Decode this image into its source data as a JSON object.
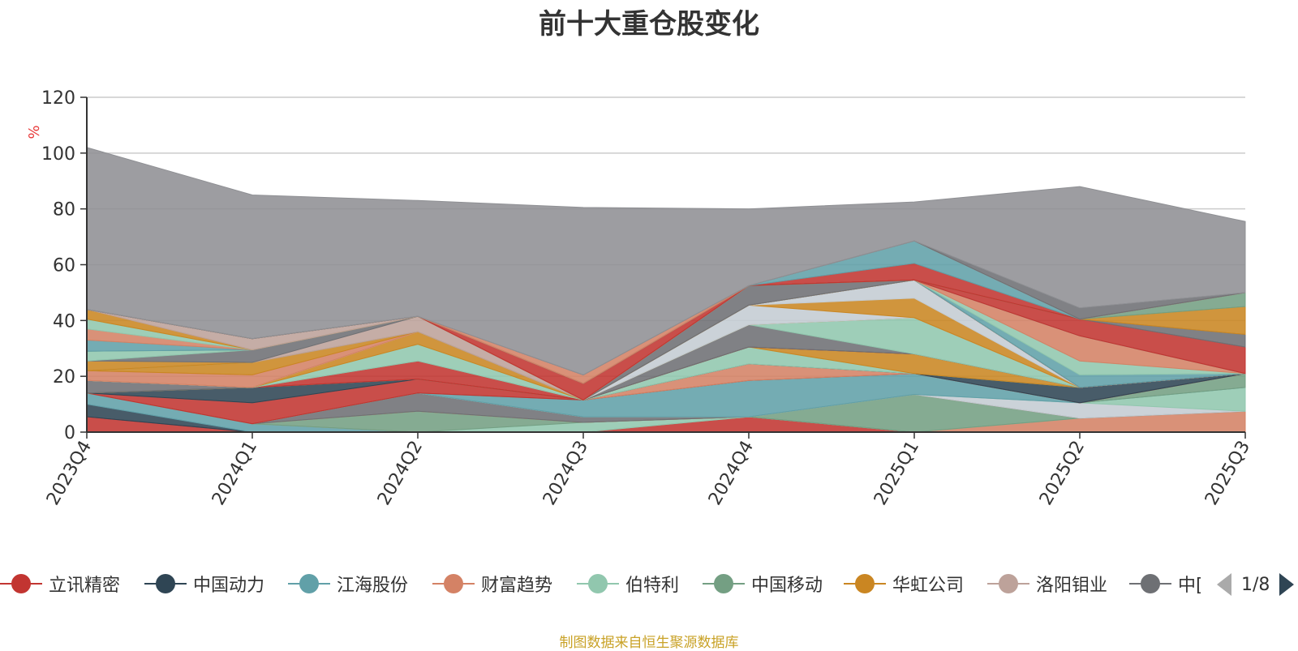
{
  "chart_data": {
    "type": "area",
    "title": "前十大重仓股变化",
    "ylabel": "%",
    "ylim": [
      0,
      120
    ],
    "yticks": [
      0,
      20,
      40,
      60,
      80,
      100,
      120
    ],
    "categories": [
      "2023Q4",
      "2024Q1",
      "2024Q2",
      "2024Q3",
      "2024Q4",
      "2025Q1",
      "2025Q2",
      "2025Q3"
    ],
    "grid": true,
    "stacked": true,
    "series": [
      {
        "name": "立讯精密",
        "color": "#c23531",
        "values": [
          5.5,
          0,
          0,
          0,
          5.5,
          0,
          0,
          0
        ]
      },
      {
        "name": "",
        "color": "#2f4554",
        "values": [
          4.5,
          0,
          0,
          0,
          0,
          0,
          0,
          0
        ]
      },
      {
        "name": "",
        "color": "#61a0a8",
        "values": [
          4,
          3,
          0,
          0,
          0,
          0,
          0,
          0
        ]
      },
      {
        "name": "",
        "color": "#d48265",
        "values": [
          0,
          0,
          0,
          0,
          0,
          0,
          5,
          7.5
        ]
      },
      {
        "name": "",
        "color": "#91c7ae",
        "values": [
          0,
          0,
          0,
          3.5,
          0,
          0,
          0,
          0
        ]
      },
      {
        "name": "",
        "color": "#749f83",
        "values": [
          0,
          0,
          7.5,
          0,
          0,
          13.5,
          0,
          0
        ]
      },
      {
        "name": "",
        "color": "#ca8622",
        "values": [
          0,
          0,
          0,
          0,
          0,
          0,
          0,
          0
        ]
      },
      {
        "name": "",
        "color": "#bda29a",
        "values": [
          0,
          0,
          0,
          0,
          0,
          0,
          0,
          0
        ]
      },
      {
        "name": "",
        "color": "#6e7074",
        "values": [
          0,
          0,
          6.5,
          2,
          0,
          0,
          0,
          0
        ]
      },
      {
        "name": "",
        "color": "#c4ccd3",
        "values": [
          0,
          0,
          0,
          0,
          0,
          0,
          5.5,
          0
        ]
      },
      {
        "name": "",
        "color": "#91c7ae",
        "values": [
          0,
          0,
          0,
          0,
          0,
          0,
          0,
          8.5
        ]
      },
      {
        "name": "",
        "color": "#61a0a8",
        "values": [
          0,
          0,
          0,
          6,
          13,
          7.5,
          0,
          0
        ]
      },
      {
        "name": "",
        "color": "#749f83",
        "values": [
          0,
          0,
          0,
          0,
          0,
          0,
          0,
          5
        ]
      },
      {
        "name": "",
        "color": "#c23531",
        "values": [
          0,
          7.5,
          5,
          0,
          0,
          0,
          0,
          0
        ]
      },
      {
        "name": "",
        "color": "#d48265",
        "values": [
          0,
          0,
          0,
          0,
          6,
          0,
          0,
          0
        ]
      },
      {
        "name": "",
        "color": "#2f4554",
        "values": [
          0,
          5.5,
          0,
          0,
          0,
          0,
          5.5,
          0
        ]
      },
      {
        "name": "",
        "color": "#91c7ae",
        "values": [
          0,
          0,
          0,
          0,
          6,
          0,
          0,
          0
        ]
      },
      {
        "name": "",
        "color": "#ca8622",
        "values": [
          0,
          0,
          0,
          0,
          0,
          7,
          0,
          0
        ]
      },
      {
        "name": "",
        "color": "#6e7074",
        "values": [
          4.5,
          0,
          0,
          0,
          0,
          0,
          0,
          0
        ]
      },
      {
        "name": "",
        "color": "#c23531",
        "values": [
          0,
          0,
          6.5,
          0,
          0,
          0,
          0,
          0
        ]
      },
      {
        "name": "",
        "color": "#6e7074",
        "values": [
          0,
          0,
          0,
          0,
          8,
          0,
          0,
          0
        ]
      },
      {
        "name": "",
        "color": "#91c7ae",
        "values": [
          0,
          0,
          0,
          0,
          0,
          13,
          0,
          0
        ]
      },
      {
        "name": "",
        "color": "#91c7ae",
        "values": [
          0,
          0,
          6,
          0,
          0,
          0,
          0,
          0
        ]
      },
      {
        "name": "",
        "color": "#ca8622",
        "values": [
          0,
          0,
          4.5,
          0,
          0,
          0,
          0,
          0
        ]
      },
      {
        "name": "",
        "color": "#c4ccd3",
        "values": [
          0,
          0,
          0,
          0,
          7,
          0,
          0,
          0
        ]
      },
      {
        "name": "",
        "color": "#ca8622",
        "values": [
          0,
          0,
          0,
          0,
          0,
          7,
          0,
          0
        ]
      },
      {
        "name": "",
        "color": "#c4ccd3",
        "values": [
          0,
          0,
          0,
          0,
          0,
          6.5,
          0,
          0
        ]
      },
      {
        "name": "",
        "color": "#d48265",
        "values": [
          3.5,
          4.5,
          0,
          0,
          0,
          0,
          0,
          0
        ]
      },
      {
        "name": "",
        "color": "#ca8622",
        "values": [
          0,
          4.5,
          0,
          0,
          0,
          0,
          0,
          0
        ]
      },
      {
        "name": "",
        "color": "#91c7ae",
        "values": [
          0,
          0,
          0,
          0,
          0,
          0,
          0,
          0
        ]
      },
      {
        "name": "",
        "color": "#ca8622",
        "values": [
          3.5,
          0,
          0,
          0,
          0,
          0,
          0,
          0
        ]
      },
      {
        "name": "",
        "color": "#bda29a",
        "values": [
          0,
          0,
          5.5,
          0,
          0,
          0,
          0,
          0
        ]
      },
      {
        "name": "",
        "color": "#6e7074",
        "values": [
          0,
          4.5,
          0,
          0,
          7,
          0,
          0,
          0
        ]
      },
      {
        "name": "",
        "color": "#91c7ae",
        "values": [
          3.5,
          0,
          0,
          0,
          0,
          0,
          0,
          0
        ]
      },
      {
        "name": "",
        "color": "#749f83",
        "values": [
          0,
          0,
          0,
          0,
          0,
          0,
          0,
          0
        ]
      },
      {
        "name": "",
        "color": "#61a0a8",
        "values": [
          4,
          0,
          0,
          0,
          0,
          0,
          0,
          0
        ]
      },
      {
        "name": "",
        "color": "#d48265",
        "values": [
          4,
          0,
          0,
          0,
          0,
          0,
          0,
          0
        ]
      },
      {
        "name": "",
        "color": "#91c7ae",
        "values": [
          3.5,
          0,
          0,
          0,
          0,
          0,
          0,
          0
        ]
      },
      {
        "name": "",
        "color": "#ca8622",
        "values": [
          3.5,
          0,
          0,
          0,
          0,
          0,
          0,
          0
        ]
      },
      {
        "name": "",
        "color": "#bda29a",
        "values": [
          0,
          4,
          0,
          0,
          0,
          0,
          0,
          0
        ]
      },
      {
        "name": "",
        "color": "#c23531",
        "values": [
          0,
          0,
          0,
          6,
          0,
          0,
          0,
          0
        ]
      },
      {
        "name": "",
        "color": "#61a0a8",
        "values": [
          0,
          0,
          0,
          0,
          0,
          0,
          4.5,
          0
        ]
      },
      {
        "name": "",
        "color": "#91c7ae",
        "values": [
          0,
          0,
          0,
          0,
          0,
          0,
          5,
          0
        ]
      },
      {
        "name": "",
        "color": "#d48265",
        "values": [
          0,
          0,
          0,
          0,
          0,
          0,
          9,
          0
        ]
      },
      {
        "name": "",
        "color": "#61a0a8",
        "values": [
          0,
          0,
          0,
          0,
          0,
          0,
          0,
          0
        ]
      },
      {
        "name": "",
        "color": "#c23531",
        "values": [
          0,
          0,
          0,
          0,
          0,
          0,
          6,
          9.5
        ]
      },
      {
        "name": "",
        "color": "#6e7074",
        "values": [
          0,
          0,
          0,
          0,
          0,
          0,
          0,
          4.5
        ]
      },
      {
        "name": "",
        "color": "#ca8622",
        "values": [
          0,
          0,
          0,
          0,
          0,
          0,
          0,
          10
        ]
      },
      {
        "name": "",
        "color": "#749f83",
        "values": [
          0,
          0,
          0,
          0,
          0,
          0,
          0,
          5
        ]
      },
      {
        "name": "",
        "color": "#c23531",
        "values": [
          0,
          0,
          0,
          0,
          0,
          6,
          0,
          0
        ]
      },
      {
        "name": "",
        "color": "#61a0a8",
        "values": [
          0,
          0,
          0,
          0,
          0,
          8,
          0,
          0
        ]
      },
      {
        "name": "",
        "color": "#d48265",
        "values": [
          0,
          0,
          0,
          3,
          0,
          0,
          0,
          0
        ]
      },
      {
        "name": "",
        "color": "#6e7074",
        "values": [
          0,
          0,
          0,
          0,
          0,
          0,
          4,
          0
        ]
      },
      {
        "name": "",
        "color": "#8f9094",
        "values": [
          58,
          51.5,
          41.5,
          60,
          27.5,
          14,
          43.5,
          25.5
        ]
      }
    ]
  },
  "legend": {
    "items": [
      {
        "name": "立讯精密",
        "color": "#c23531"
      },
      {
        "name": "中国动力",
        "color": "#2f4554"
      },
      {
        "name": "江海股份",
        "color": "#61a0a8"
      },
      {
        "name": "财富趋势",
        "color": "#d48265"
      },
      {
        "name": "伯特利",
        "color": "#91c7ae"
      },
      {
        "name": "中国移动",
        "color": "#749f83"
      },
      {
        "name": "华虹公司",
        "color": "#ca8622"
      },
      {
        "name": "洛阳钼业",
        "color": "#bda29a"
      },
      {
        "name": "中[",
        "color": "#6e7074"
      }
    ],
    "page_text": "1/8"
  },
  "source_note": "制图数据来自恒生聚源数据库"
}
